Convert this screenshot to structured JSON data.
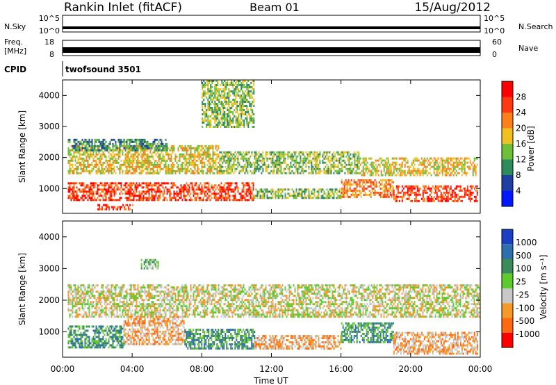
{
  "header": {
    "station": "Rankin Inlet (fitACF)",
    "beam": "Beam 01",
    "date": "15/Aug/2012"
  },
  "top_strips": {
    "nsky_label": "N.Sky",
    "nsky_ticks": [
      "10^5",
      "10^0"
    ],
    "nsearch_label": "N.Search",
    "nsearch_ticks": [
      "10^5",
      "10^0"
    ],
    "freq_label": "Freq.",
    "freq_unit": "[MHz]",
    "freq_ticks": [
      "18",
      "8"
    ],
    "nave_label": "Nave",
    "nave_ticks": [
      "60",
      "0"
    ],
    "cpid_label": "CPID",
    "cpid_value": "twofsound 3501"
  },
  "colors": {
    "power": [
      "#0018ff",
      "#1f3fa3",
      "#2e8a5a",
      "#6fbf3a",
      "#f0c020",
      "#ff7f1a",
      "#ff3a10",
      "#ff0000"
    ],
    "velocity": [
      "#1a3fc4",
      "#2f6fae",
      "#3a8a5a",
      "#5ecb2c",
      "#c8c8c8",
      "#f59a2a",
      "#ff6a10",
      "#ff0000"
    ]
  },
  "chart_data": [
    {
      "type": "heatmap",
      "name": "power",
      "ylabel": "Slant Range [km]",
      "ylim": [
        200,
        4500
      ],
      "yticks": [
        1000,
        2000,
        3000,
        4000
      ],
      "xlim": [
        0,
        24
      ],
      "colorbar_label": "Power [dB]",
      "colorbar_ticks": [
        "28",
        "24",
        "20",
        "16",
        "12",
        "8",
        "4"
      ],
      "bands": [
        {
          "x0": 0.3,
          "x1": 11.0,
          "r0": 600,
          "r1": 1200,
          "level": 6
        },
        {
          "x0": 11.0,
          "x1": 16.0,
          "r0": 700,
          "r1": 1000,
          "level": 3
        },
        {
          "x0": 16.0,
          "x1": 19.0,
          "r0": 700,
          "r1": 1300,
          "level": 5
        },
        {
          "x0": 19.0,
          "x1": 23.8,
          "r0": 600,
          "r1": 1100,
          "level": 6
        },
        {
          "x0": 0.3,
          "x1": 9.0,
          "r0": 1500,
          "r1": 2400,
          "level": 4
        },
        {
          "x0": 9.0,
          "x1": 17.0,
          "r0": 1500,
          "r1": 2200,
          "level": 3
        },
        {
          "x0": 17.0,
          "x1": 23.8,
          "r0": 1400,
          "r1": 2000,
          "level": 4
        },
        {
          "x0": 0.3,
          "x1": 6.0,
          "r0": 2200,
          "r1": 2600,
          "level": 2
        },
        {
          "x0": 8.0,
          "x1": 11.0,
          "r0": 3000,
          "r1": 4500,
          "level": 3
        },
        {
          "x0": 2.0,
          "x1": 4.0,
          "r0": 300,
          "r1": 500,
          "level": 6
        }
      ]
    },
    {
      "type": "heatmap",
      "name": "velocity",
      "ylabel": "Slant Range [km]",
      "ylim": [
        200,
        4500
      ],
      "yticks": [
        1000,
        2000,
        3000,
        4000
      ],
      "xlim": [
        0,
        24
      ],
      "xlabel": "Time UT",
      "xticks": [
        "00:00",
        "04:00",
        "08:00",
        "12:00",
        "16:00",
        "20:00",
        "00:00"
      ],
      "colorbar_label": "Velocity [m s⁻¹]",
      "colorbar_ticks": [
        "1000",
        "500",
        "100",
        "25",
        "-25",
        "-100",
        "-500",
        "-1000"
      ],
      "bands": [
        {
          "x0": 0.3,
          "x1": 24.0,
          "r0": 1500,
          "r1": 2500,
          "level": 4
        },
        {
          "x0": 0.3,
          "x1": 3.5,
          "r0": 500,
          "r1": 1200,
          "level": 2
        },
        {
          "x0": 3.5,
          "x1": 7.0,
          "r0": 600,
          "r1": 1500,
          "level": 5
        },
        {
          "x0": 7.0,
          "x1": 11.0,
          "r0": 500,
          "r1": 1100,
          "level": 2
        },
        {
          "x0": 11.0,
          "x1": 16.0,
          "r0": 500,
          "r1": 900,
          "level": 5
        },
        {
          "x0": 16.0,
          "x1": 19.0,
          "r0": 700,
          "r1": 1300,
          "level": 2
        },
        {
          "x0": 19.0,
          "x1": 23.8,
          "r0": 300,
          "r1": 1000,
          "level": 5
        },
        {
          "x0": 4.5,
          "x1": 5.5,
          "r0": 3000,
          "r1": 3300,
          "level": 3
        }
      ]
    }
  ]
}
